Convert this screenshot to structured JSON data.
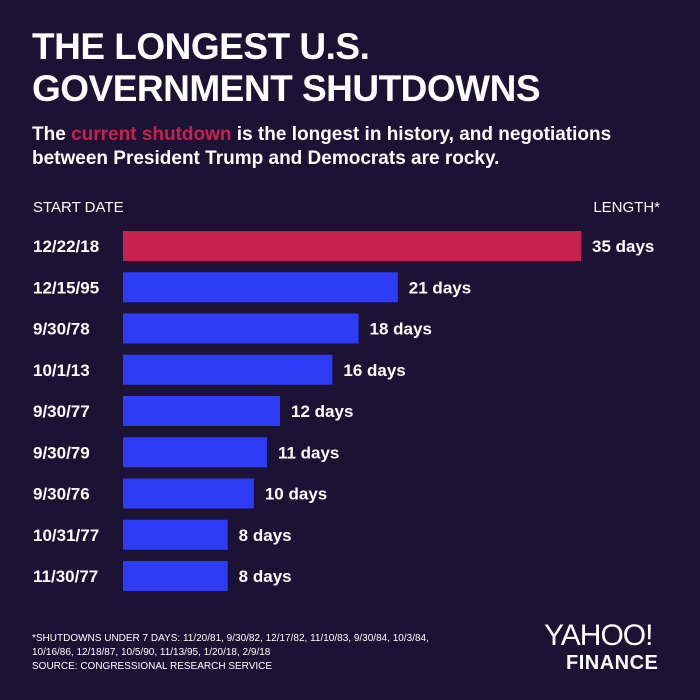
{
  "header": {
    "title_line1": "THE LONGEST U.S.",
    "title_line2": "GOVERNMENT SHUTDOWNS",
    "subtitle_pre": "The ",
    "subtitle_highlight": "current shutdown",
    "subtitle_post": " is the longest in history, and negotiations between President Trump and Democrats are rocky."
  },
  "columns": {
    "start": "START DATE",
    "length": "LENGTH*"
  },
  "colors": {
    "background": "#1c1233",
    "current": "#c8204f",
    "bar": "#2f3cf5",
    "text": "#ffffff"
  },
  "chart_data": {
    "type": "bar",
    "orientation": "horizontal",
    "categories": [
      "12/22/18",
      "12/15/95",
      "9/30/78",
      "10/1/13",
      "9/30/77",
      "9/30/79",
      "9/30/76",
      "10/31/77",
      "11/30/77"
    ],
    "values": [
      35,
      21,
      18,
      16,
      12,
      11,
      10,
      8,
      8
    ],
    "value_labels": [
      "35 days",
      "21 days",
      "18 days",
      "16 days",
      "12 days",
      "11 days",
      "10 days",
      "8 days",
      "8 days"
    ],
    "highlight_index": 0,
    "xlim": [
      0,
      35
    ],
    "grid": false,
    "legend": "none"
  },
  "footnote": {
    "line1": "*SHUTDOWNS UNDER 7 DAYS: 11/20/81, 9/30/82, 12/17/82, 11/10/83, 9/30/84, 10/3/84,",
    "line2": "10/16/86, 12/18/87, 10/5/90, 11/13/95, 1/20/18, 2/9/18",
    "source": "SOURCE:  CONGRESSIONAL RESEARCH SERVICE"
  },
  "logo": {
    "line1": "YAHOO!",
    "line2": "FINANCE"
  }
}
